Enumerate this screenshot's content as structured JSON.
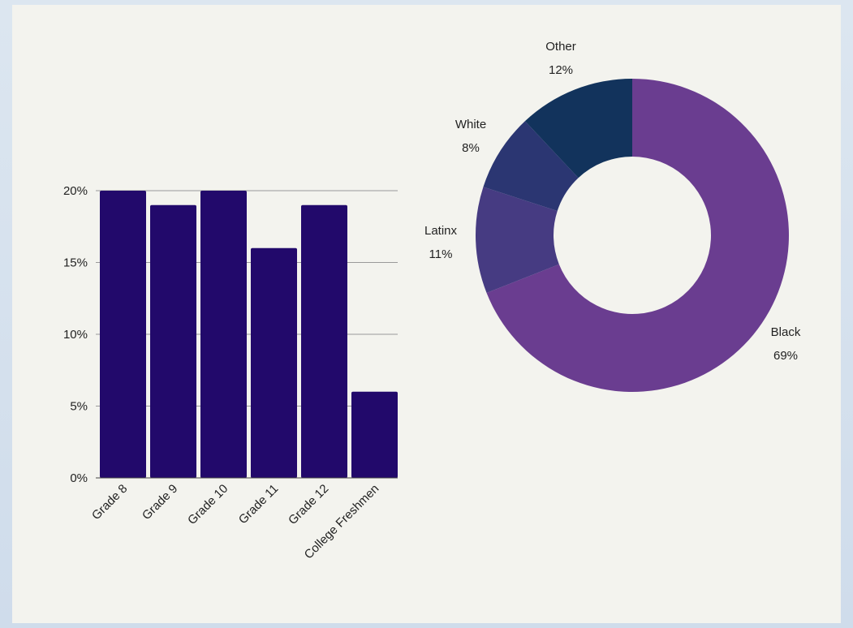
{
  "chart_data": [
    {
      "type": "bar",
      "categories": [
        "Grade 8",
        "Grade 9",
        "Grade 10",
        "Grade 11",
        "Grade 12",
        "College Freshmen"
      ],
      "values": [
        20,
        19,
        20,
        16,
        19,
        6
      ],
      "y_ticks": [
        "0%",
        "5%",
        "10%",
        "15%",
        "20%"
      ],
      "ylim": [
        0,
        20
      ],
      "grid": true,
      "color": "#22096b"
    },
    {
      "type": "pie",
      "donut": true,
      "slices": [
        {
          "label": "Black",
          "value": 69,
          "value_label": "69%",
          "color": "#6a3d90"
        },
        {
          "label": "Latinx",
          "value": 11,
          "value_label": "11%",
          "color": "#463b82"
        },
        {
          "label": "White",
          "value": 8,
          "value_label": "8%",
          "color": "#2b3672"
        },
        {
          "label": "Other",
          "value": 12,
          "value_label": "12%",
          "color": "#12335c"
        }
      ]
    }
  ]
}
